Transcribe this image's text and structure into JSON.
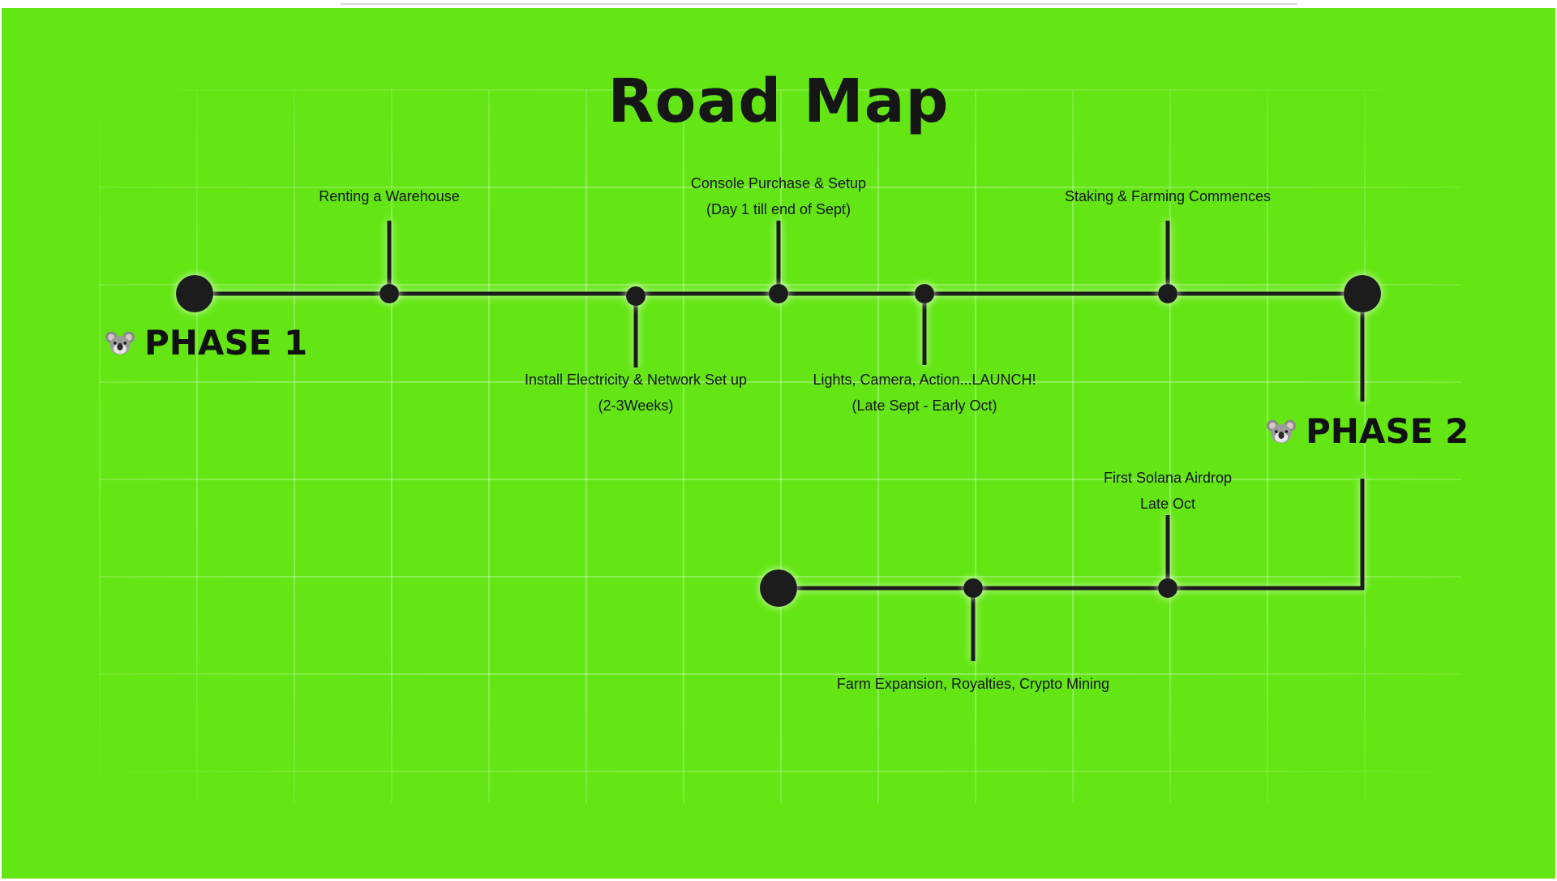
{
  "title": "Road Map",
  "colors": {
    "background": "#63e614",
    "line": "#1e1e1e",
    "text": "#161616"
  },
  "phases": [
    {
      "label": "PHASE 1",
      "icon": "koala-icon"
    },
    {
      "label": "PHASE 2",
      "icon": "koala-icon"
    }
  ],
  "milestones": [
    {
      "lines": [
        "Renting a Warehouse"
      ]
    },
    {
      "lines": [
        "Install Electricity & Network Set up",
        "(2-3Weeks)"
      ]
    },
    {
      "lines": [
        "Console Purchase & Setup",
        "(Day 1 till end of Sept)"
      ]
    },
    {
      "lines": [
        "Lights, Camera, Action...LAUNCH!",
        "(Late Sept - Early Oct)"
      ]
    },
    {
      "lines": [
        "Staking & Farming Commences"
      ]
    },
    {
      "lines": [
        "First  Solana Airdrop",
        "Late Oct"
      ]
    },
    {
      "lines": [
        "Farm Expansion, Royalties, Crypto Mining"
      ]
    }
  ]
}
